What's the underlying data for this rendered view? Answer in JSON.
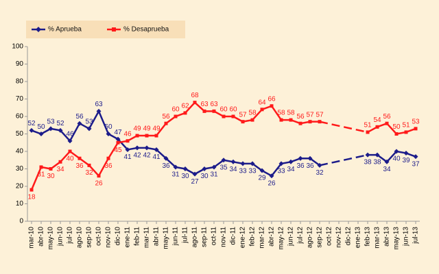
{
  "chart_data": {
    "type": "line",
    "categories": [
      "mar-10",
      "abr-10",
      "may-10",
      "jun-10",
      "jul-10",
      "ago-10",
      "sep-10",
      "oct-10",
      "nov-10",
      "dic-10",
      "ene-11",
      "feb-11",
      "mar-11",
      "abr-11",
      "may-11",
      "jun-11",
      "jul-11",
      "ago-11",
      "sep-11",
      "oct-11",
      "nov-11",
      "dic-11",
      "ene-12",
      "feb-12",
      "mar-12",
      "abr-12",
      "may-12",
      "jun-12",
      "jul-12",
      "ago-12",
      "sep-12",
      "oct-12",
      "nov-12",
      "dic-12",
      "ene-13",
      "feb-13",
      "mar-13",
      "abr-13",
      "may-13",
      "jun-13",
      "jul-13"
    ],
    "series": [
      {
        "name": "% Aprueba",
        "color": "#1c1c8a",
        "marker": "diamond",
        "values": [
          52,
          50,
          53,
          52,
          46,
          56,
          53,
          63,
          50,
          47,
          41,
          42,
          42,
          41,
          36,
          31,
          30,
          27,
          30,
          31,
          35,
          34,
          33,
          33,
          29,
          26,
          33,
          34,
          36,
          36,
          32,
          null,
          null,
          null,
          null,
          38,
          38,
          34,
          40,
          39,
          37
        ]
      },
      {
        "name": "% Desaprueba",
        "color": "#ff1a1a",
        "marker": "square",
        "values": [
          18,
          31,
          30,
          34,
          40,
          36,
          32,
          26,
          36,
          45,
          46,
          49,
          49,
          49,
          56,
          60,
          62,
          68,
          63,
          63,
          60,
          60,
          57,
          58,
          64,
          66,
          58,
          58,
          56,
          57,
          57,
          null,
          null,
          null,
          null,
          51,
          54,
          56,
          50,
          51,
          53
        ]
      }
    ],
    "ylim": [
      0,
      100
    ],
    "yticks": [
      0,
      10,
      20,
      30,
      40,
      50,
      60,
      70,
      80,
      90,
      100
    ],
    "grid": false,
    "legend": "top-left"
  }
}
